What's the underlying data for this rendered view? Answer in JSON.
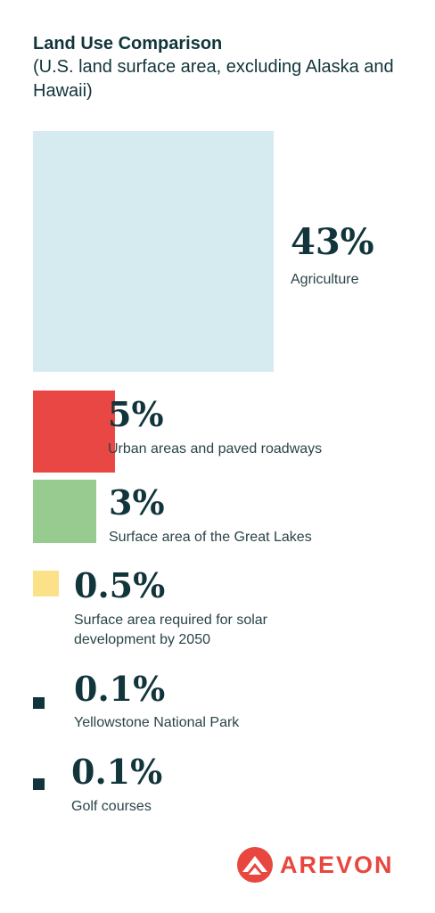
{
  "title": "Land Use Comparison",
  "subtitle": "(U.S. land surface area, excluding Alaska and Hawaii)",
  "chart_data": {
    "type": "area",
    "title": "Land Use Comparison",
    "subtitle": "(U.S. land surface area, excluding Alaska and Hawaii)",
    "categories": [
      "Agriculture",
      "Urban areas and paved roadways",
      "Surface area of the Great Lakes",
      "Surface area required for solar development by 2050",
      "Yellowstone National Park",
      "Golf courses"
    ],
    "values": [
      43,
      5,
      3,
      0.5,
      0.1,
      0.1
    ],
    "labels": [
      "43%",
      "5%",
      "3%",
      "0.5%",
      "0.1%",
      "0.1%"
    ],
    "colors": [
      "#d5ebef",
      "#e94744",
      "#98cb90",
      "#fbe187",
      "#12353b",
      "#12353b"
    ],
    "label_lines": [
      [
        "Agriculture"
      ],
      [
        "Urban areas and paved roadways"
      ],
      [
        "Surface area of the Great Lakes"
      ],
      [
        "Surface area required for solar",
        "development by 2050"
      ],
      [
        "Yellowstone National Park"
      ],
      [
        "Golf courses"
      ]
    ]
  },
  "logo": {
    "text": "AREVON",
    "color": "#e8473f"
  }
}
